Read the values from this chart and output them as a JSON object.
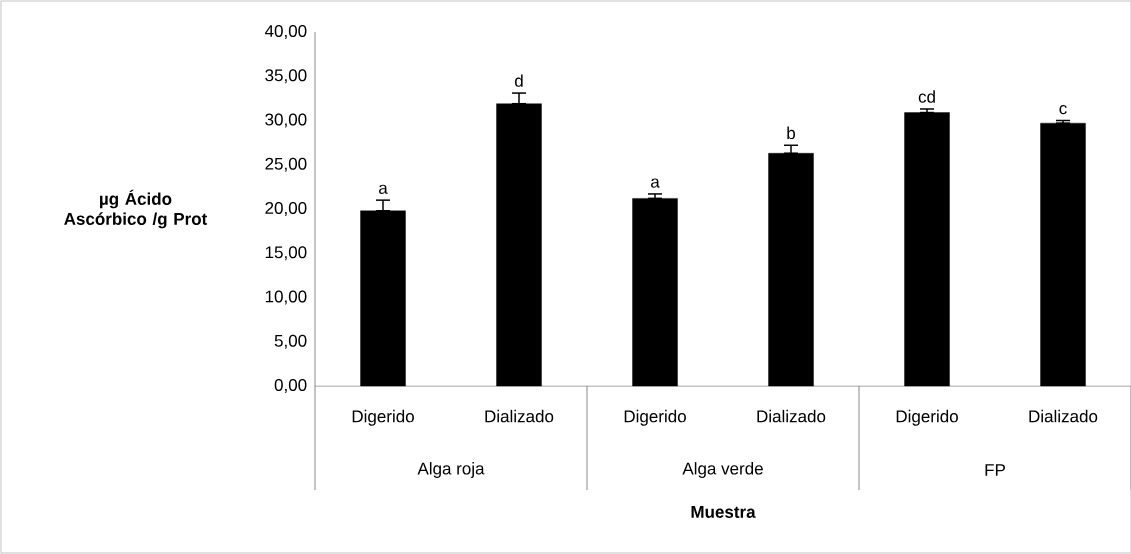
{
  "chart_data": {
    "type": "bar",
    "xlabel": "Muestra",
    "ylabel": "µg Ácido Ascórbico /g Prot",
    "categories": [
      "Digerido",
      "Dializado",
      "Digerido",
      "Dializado",
      "Digerido",
      "Dializado"
    ],
    "annotations": [
      "Alga roja",
      "Alga verde",
      "FP"
    ],
    "values": [
      19.8,
      31.9,
      21.2,
      26.3,
      30.9,
      29.7
    ],
    "errors": [
      [
        19.8,
        21.0
      ],
      [
        31.9,
        33.1
      ],
      [
        21.2,
        21.7
      ],
      [
        26.3,
        27.2
      ],
      [
        30.9,
        31.3
      ],
      [
        29.7,
        30.0
      ]
    ],
    "value_labels": [
      "a",
      "d",
      "a",
      "b",
      "cd",
      "c"
    ],
    "color": "#000000",
    "ylim": [
      0,
      40
    ],
    "yticks": [
      {
        "value": 0,
        "label": "0,00"
      },
      {
        "value": 5,
        "label": "5,00"
      },
      {
        "value": 10,
        "label": "10,00"
      },
      {
        "value": 15,
        "label": "15,00"
      },
      {
        "value": 20,
        "label": "20,00"
      },
      {
        "value": 25,
        "label": "25,00"
      },
      {
        "value": 30,
        "label": "30,00"
      },
      {
        "value": 35,
        "label": "35,00"
      },
      {
        "value": 40,
        "label": "40,00"
      }
    ],
    "grid": false
  }
}
